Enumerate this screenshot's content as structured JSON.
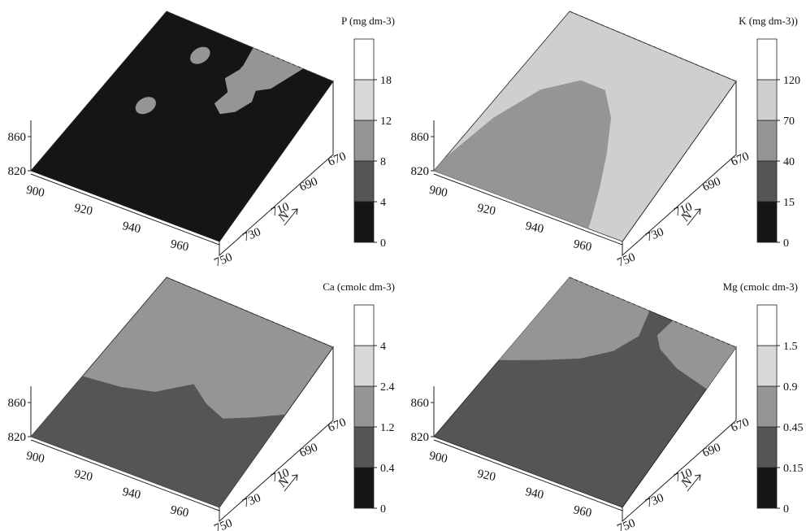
{
  "chart_data": [
    {
      "type": "surface",
      "colorbar": {
        "title": "P (mg dm-3)",
        "ticks": [
          "0",
          "4",
          "8",
          "12",
          "18"
        ]
      },
      "colors": [
        "#151515",
        "#555555",
        "#959595",
        "#d8d8d8",
        "#ffffff"
      ],
      "x_ticks": [
        "900",
        "920",
        "940",
        "960"
      ],
      "y_ticks": [
        "670",
        "690",
        "710",
        "730",
        "750"
      ],
      "z_ticks": [
        "820",
        "860"
      ],
      "north_label": "N",
      "surface_color_index": 0,
      "regions": [
        {
          "color_index": 2,
          "shape": "top-blob"
        },
        {
          "color_index": 2,
          "shape": "spot",
          "u": 0.25,
          "v": 0.52
        },
        {
          "color_index": 2,
          "shape": "spot",
          "u": 0.31,
          "v": 0.86
        },
        {
          "color_index": 2,
          "shape": "spot",
          "u": 0.58,
          "v": 0.88
        }
      ]
    },
    {
      "type": "surface",
      "colorbar": {
        "title": "K (mg dm-3))",
        "ticks": [
          "0",
          "15",
          "40",
          "70",
          "120"
        ]
      },
      "colors": [
        "#151515",
        "#555555",
        "#959595",
        "#cfcfcf",
        "#ffffff"
      ],
      "x_ticks": [
        "900",
        "920",
        "940",
        "960"
      ],
      "y_ticks": [
        "670",
        "690",
        "710",
        "730",
        "750"
      ],
      "z_ticks": [
        "820",
        "860"
      ],
      "north_label": "N",
      "surface_color_index": 3,
      "regions": [
        {
          "color_index": 2,
          "shape": "bottom-mound"
        }
      ]
    },
    {
      "type": "surface",
      "colorbar": {
        "title": "Ca (cmolc dm-3)",
        "ticks": [
          "0",
          "0.4",
          "1.2",
          "2.4",
          "4"
        ]
      },
      "colors": [
        "#151515",
        "#555555",
        "#959595",
        "#d8d8d8",
        "#ffffff"
      ],
      "x_ticks": [
        "900",
        "920",
        "940",
        "960"
      ],
      "y_ticks": [
        "670",
        "690",
        "710",
        "730",
        "750"
      ],
      "z_ticks": [
        "820",
        "860"
      ],
      "north_label": "N",
      "surface_color_index": 2,
      "regions": [
        {
          "color_index": 1,
          "shape": "lower-band"
        }
      ]
    },
    {
      "type": "surface",
      "colorbar": {
        "title": "Mg (cmolc dm-3)",
        "ticks": [
          "0",
          "0.15",
          "0.45",
          "0.9",
          "1.5"
        ]
      },
      "colors": [
        "#151515",
        "#555555",
        "#959595",
        "#d8d8d8",
        "#ffffff"
      ],
      "x_ticks": [
        "900",
        "920",
        "940",
        "960"
      ],
      "y_ticks": [
        "670",
        "690",
        "710",
        "730",
        "750"
      ],
      "z_ticks": [
        "820",
        "860"
      ],
      "north_label": "N",
      "surface_color_index": 1,
      "regions": [
        {
          "color_index": 2,
          "shape": "left-arc"
        },
        {
          "color_index": 2,
          "shape": "right-patch"
        }
      ]
    }
  ]
}
